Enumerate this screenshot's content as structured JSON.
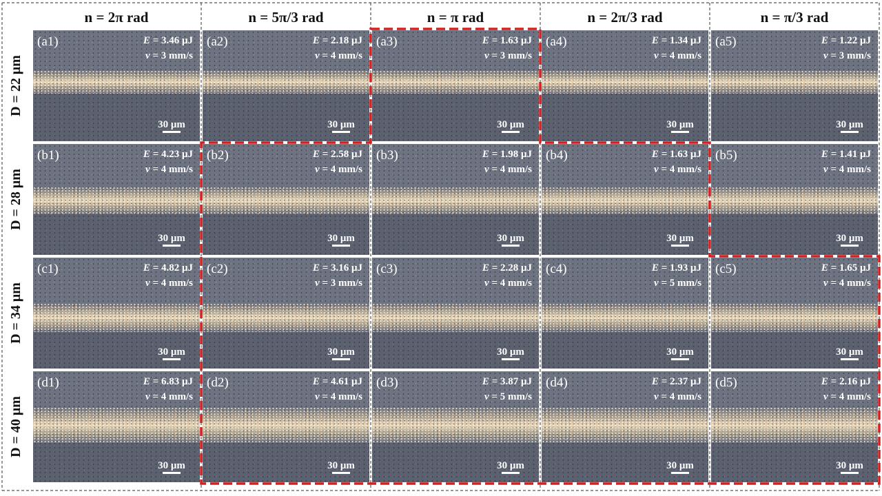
{
  "columns": [
    {
      "label": "n = 2π rad"
    },
    {
      "label": "n = 5π/3 rad"
    },
    {
      "label": "n = π rad"
    },
    {
      "label": "n = 2π/3 rad"
    },
    {
      "label": "n = π/3 rad"
    }
  ],
  "rows": [
    {
      "label": "D = 22 μm"
    },
    {
      "label": "D = 28 μm"
    },
    {
      "label": "D = 34 μm"
    },
    {
      "label": "D = 40 μm"
    }
  ],
  "panels": [
    [
      {
        "id": "(a1)",
        "E": "= 3.46 μJ",
        "v": "= 3 mm/s",
        "scale": "30 μm"
      },
      {
        "id": "(a2)",
        "E": "= 2.18 μJ",
        "v": "= 4 mm/s",
        "scale": "30 μm"
      },
      {
        "id": "(a3)",
        "E": "= 1.63 μJ",
        "v": "= 3 mm/s",
        "scale": "30 μm"
      },
      {
        "id": "(a4)",
        "E": "= 1.34 μJ",
        "v": "= 4 mm/s",
        "scale": "30 μm"
      },
      {
        "id": "(a5)",
        "E": "= 1.22 μJ",
        "v": "= 3 mm/s",
        "scale": "30 μm"
      }
    ],
    [
      {
        "id": "(b1)",
        "E": "= 4.23 μJ",
        "v": "= 4 mm/s",
        "scale": "30 μm"
      },
      {
        "id": "(b2)",
        "E": "= 2.58 μJ",
        "v": "= 4 mm/s",
        "scale": "30 μm"
      },
      {
        "id": "(b3)",
        "E": "= 1.98 μJ",
        "v": "= 4 mm/s",
        "scale": "30 μm"
      },
      {
        "id": "(b4)",
        "E": "= 1.63 μJ",
        "v": "= 4 mm/s",
        "scale": "30 μm"
      },
      {
        "id": "(b5)",
        "E": "= 1.41 μJ",
        "v": "= 4 mm/s",
        "scale": "30 μm"
      }
    ],
    [
      {
        "id": "(c1)",
        "E": "= 4.82 μJ",
        "v": "= 4 mm/s",
        "scale": "30 μm"
      },
      {
        "id": "(c2)",
        "E": "= 3.16 μJ",
        "v": "= 3 mm/s",
        "scale": "30 μm"
      },
      {
        "id": "(c3)",
        "E": "= 2.28 μJ",
        "v": "= 4 mm/s",
        "scale": "30 μm"
      },
      {
        "id": "(c4)",
        "E": "= 1.93 μJ",
        "v": "= 5 mm/s",
        "scale": "30 μm"
      },
      {
        "id": "(c5)",
        "E": "= 1.65 μJ",
        "v": "= 4 mm/s",
        "scale": "30 μm"
      }
    ],
    [
      {
        "id": "(d1)",
        "E": "= 6.83 μJ",
        "v": "= 4 mm/s",
        "scale": "30 μm"
      },
      {
        "id": "(d2)",
        "E": "= 4.61 μJ",
        "v": "= 4 mm/s",
        "scale": "30 μm"
      },
      {
        "id": "(d3)",
        "E": "= 3.87 μJ",
        "v": "= 5 mm/s",
        "scale": "30 μm"
      },
      {
        "id": "(d4)",
        "E": "= 2.37 μJ",
        "v": "= 4 mm/s",
        "scale": "30 μm"
      },
      {
        "id": "(d5)",
        "E": "= 2.16 μJ",
        "v": "= 4 mm/s",
        "scale": "30 μm"
      }
    ]
  ],
  "symbols": {
    "energy": "E",
    "speed": "v"
  },
  "colors": {
    "highlight": "#d21f1f",
    "grid_dash": "#555555",
    "panel_text": "#ffffff"
  }
}
